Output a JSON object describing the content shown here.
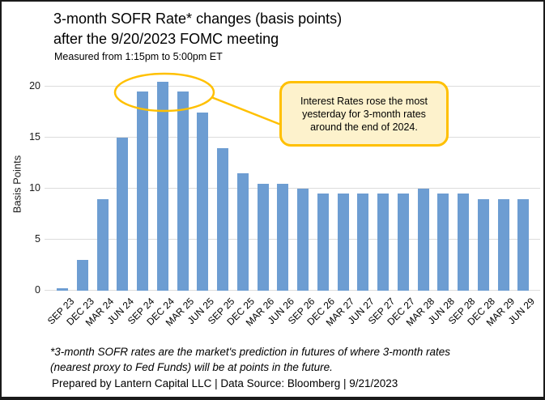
{
  "header": {
    "title_line1": "3-month SOFR Rate* changes (basis points)",
    "title_line2": "after the 9/20/2023 FOMC meeting",
    "subtitle": "Measured from 1:15pm to 5:00pm ET"
  },
  "chart_data": {
    "type": "bar",
    "title": "3-month SOFR Rate* changes (basis points) after the 9/20/2023 FOMC meeting",
    "subtitle": "Measured from 1:15pm to 5:00pm ET",
    "xlabel": "",
    "ylabel": "Basis Points",
    "ylim": [
      0,
      20.6
    ],
    "yticks": [
      0,
      5,
      10,
      15,
      20
    ],
    "grid": true,
    "legend": "none",
    "categories": [
      "SEP 23",
      "DEC 23",
      "MAR 24",
      "JUN 24",
      "SEP 24",
      "DEC 24",
      "MAR 25",
      "JUN 25",
      "SEP 25",
      "DEC 25",
      "MAR 26",
      "JUN 26",
      "SEP 26",
      "DEC 26",
      "MAR 27",
      "JUN 27",
      "SEP 27",
      "DEC 27",
      "MAR 28",
      "JUN 28",
      "SEP 28",
      "DEC 28",
      "MAR 29",
      "JUN 29"
    ],
    "values": [
      0.25,
      3,
      9,
      15,
      19.5,
      20.5,
      19.5,
      17.5,
      14,
      11.5,
      10.5,
      10.5,
      10,
      9.5,
      9.5,
      9.5,
      9.5,
      9.5,
      10,
      9.5,
      9.5,
      9,
      9,
      9
    ]
  },
  "annotation": {
    "text": "Interest Rates rose the most yesterday for 3-month rates around the end of 2024.",
    "highlighted_categories": [
      "SEP 24",
      "DEC 24",
      "MAR 25"
    ]
  },
  "footnote": {
    "line1": "*3-month SOFR rates are the market's prediction in futures of where 3-month rates",
    "line2": "(nearest proxy to Fed Funds) will be at points in the future."
  },
  "credit": "Prepared by Lantern Capital LLC | Data Source: Bloomberg | 9/21/2023",
  "colors": {
    "bar": "#6D9DD2",
    "gold": "#FFC000",
    "callout_fill": "#FDF2CC",
    "gridline": "#DCDCDC"
  }
}
